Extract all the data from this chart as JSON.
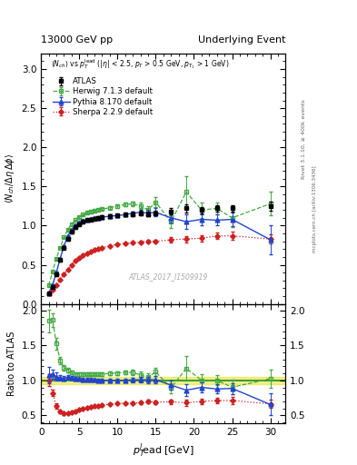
{
  "title_left": "13000 GeV pp",
  "title_right": "Underlying Event",
  "watermark": "ATLAS_2017_I1509919",
  "atlas_x": [
    1.0,
    1.5,
    2.0,
    2.5,
    3.0,
    3.5,
    4.0,
    4.5,
    5.0,
    5.5,
    6.0,
    6.5,
    7.0,
    7.5,
    8.0,
    9.0,
    10.0,
    11.0,
    12.0,
    13.0,
    14.0,
    15.0,
    17.0,
    19.0,
    21.0,
    23.0,
    25.0,
    30.0
  ],
  "atlas_y": [
    0.13,
    0.22,
    0.38,
    0.56,
    0.72,
    0.83,
    0.92,
    0.98,
    1.02,
    1.05,
    1.07,
    1.08,
    1.09,
    1.1,
    1.11,
    1.12,
    1.13,
    1.14,
    1.15,
    1.16,
    1.15,
    1.16,
    1.18,
    1.22,
    1.2,
    1.22,
    1.22,
    1.25
  ],
  "atlas_yerr": [
    0.01,
    0.01,
    0.02,
    0.02,
    0.02,
    0.02,
    0.02,
    0.02,
    0.02,
    0.02,
    0.02,
    0.02,
    0.02,
    0.02,
    0.02,
    0.02,
    0.02,
    0.02,
    0.03,
    0.03,
    0.03,
    0.03,
    0.04,
    0.05,
    0.04,
    0.04,
    0.04,
    0.06
  ],
  "herwig_x": [
    1.0,
    1.5,
    2.0,
    2.5,
    3.0,
    3.5,
    4.0,
    4.5,
    5.0,
    5.5,
    6.0,
    6.5,
    7.0,
    7.5,
    8.0,
    9.0,
    10.0,
    11.0,
    12.0,
    13.0,
    14.0,
    15.0,
    17.0,
    19.0,
    21.0,
    23.0,
    25.0,
    30.0
  ],
  "herwig_y": [
    0.24,
    0.41,
    0.58,
    0.72,
    0.85,
    0.95,
    1.02,
    1.07,
    1.11,
    1.14,
    1.17,
    1.18,
    1.19,
    1.2,
    1.21,
    1.23,
    1.25,
    1.27,
    1.28,
    1.25,
    1.2,
    1.3,
    1.05,
    1.43,
    1.2,
    1.22,
    1.1,
    1.28
  ],
  "herwig_yerr": [
    0.01,
    0.01,
    0.01,
    0.01,
    0.01,
    0.01,
    0.01,
    0.01,
    0.01,
    0.01,
    0.01,
    0.01,
    0.01,
    0.01,
    0.01,
    0.02,
    0.02,
    0.02,
    0.03,
    0.04,
    0.05,
    0.06,
    0.08,
    0.2,
    0.1,
    0.08,
    0.12,
    0.15
  ],
  "pythia_x": [
    1.0,
    1.5,
    2.0,
    2.5,
    3.0,
    3.5,
    4.0,
    4.5,
    5.0,
    5.5,
    6.0,
    6.5,
    7.0,
    7.5,
    8.0,
    9.0,
    10.0,
    11.0,
    12.0,
    13.0,
    14.0,
    15.0,
    17.0,
    19.0,
    21.0,
    23.0,
    25.0,
    30.0
  ],
  "pythia_y": [
    0.14,
    0.24,
    0.4,
    0.58,
    0.74,
    0.87,
    0.95,
    1.0,
    1.04,
    1.06,
    1.08,
    1.09,
    1.1,
    1.1,
    1.11,
    1.12,
    1.13,
    1.14,
    1.16,
    1.17,
    1.16,
    1.17,
    1.1,
    1.05,
    1.08,
    1.07,
    1.08,
    0.82
  ],
  "pythia_yerr": [
    0.01,
    0.01,
    0.01,
    0.01,
    0.01,
    0.01,
    0.01,
    0.01,
    0.01,
    0.01,
    0.01,
    0.01,
    0.01,
    0.01,
    0.01,
    0.02,
    0.02,
    0.02,
    0.02,
    0.03,
    0.04,
    0.05,
    0.06,
    0.09,
    0.07,
    0.07,
    0.09,
    0.19
  ],
  "sherpa_x": [
    1.0,
    1.5,
    2.0,
    2.5,
    3.0,
    3.5,
    4.0,
    4.5,
    5.0,
    5.5,
    6.0,
    6.5,
    7.0,
    7.5,
    8.0,
    9.0,
    10.0,
    11.0,
    12.0,
    13.0,
    14.0,
    15.0,
    17.0,
    19.0,
    21.0,
    23.0,
    25.0,
    30.0
  ],
  "sherpa_y": [
    0.13,
    0.18,
    0.24,
    0.31,
    0.38,
    0.44,
    0.5,
    0.55,
    0.59,
    0.62,
    0.65,
    0.67,
    0.69,
    0.7,
    0.72,
    0.74,
    0.76,
    0.77,
    0.78,
    0.79,
    0.8,
    0.8,
    0.82,
    0.83,
    0.84,
    0.87,
    0.87,
    0.83
  ],
  "sherpa_yerr": [
    0.005,
    0.005,
    0.005,
    0.005,
    0.005,
    0.005,
    0.005,
    0.005,
    0.005,
    0.005,
    0.005,
    0.005,
    0.005,
    0.005,
    0.005,
    0.01,
    0.01,
    0.01,
    0.01,
    0.02,
    0.02,
    0.02,
    0.03,
    0.04,
    0.04,
    0.04,
    0.05,
    0.06
  ],
  "atlas_color": "black",
  "herwig_color": "#44aa44",
  "pythia_color": "#2244cc",
  "sherpa_color": "#cc2222",
  "ylim_main": [
    0,
    3.2
  ],
  "ylim_ratio": [
    0.39,
    2.09
  ],
  "xlim": [
    0.5,
    32
  ],
  "yticks_main": [
    0,
    0.5,
    1.0,
    1.5,
    2.0,
    2.5,
    3.0
  ],
  "yticks_ratio": [
    0.5,
    1.0,
    1.5,
    2.0
  ],
  "xticks": [
    0,
    5,
    10,
    15,
    20,
    25,
    30
  ]
}
